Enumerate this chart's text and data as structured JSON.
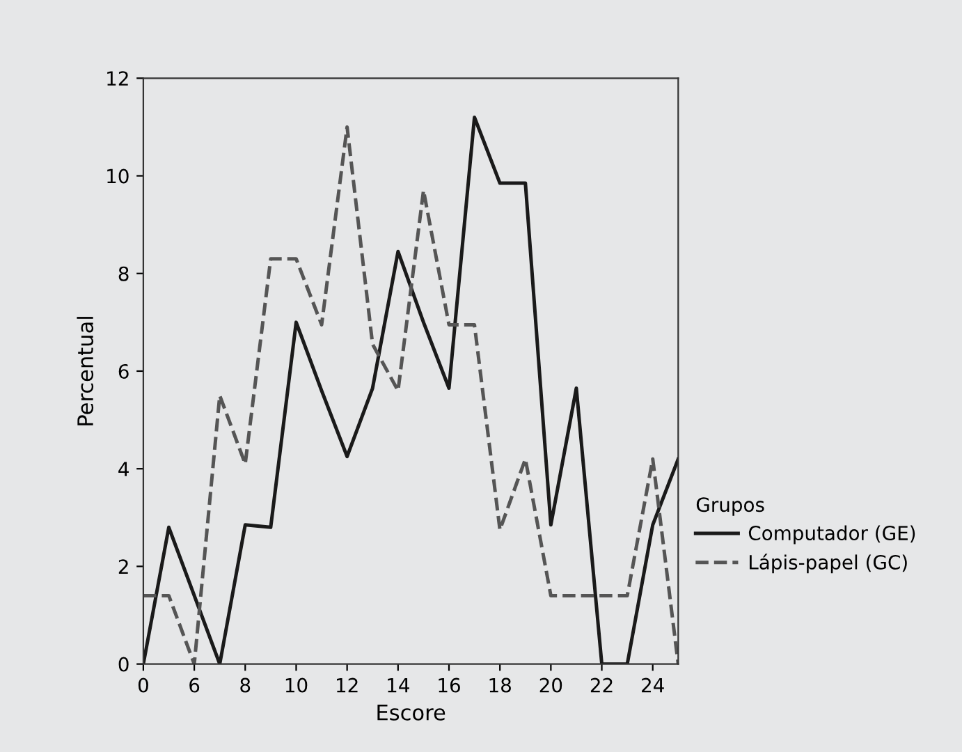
{
  "chart_data": {
    "type": "line",
    "xlabel": "Escore",
    "ylabel": "Percentual",
    "legend_title": "Grupos",
    "categories": [
      "0",
      null,
      "6",
      null,
      "8",
      null,
      "10",
      null,
      "12",
      null,
      "14",
      null,
      "16",
      null,
      "18",
      null,
      "20",
      null,
      "22",
      null,
      "24",
      null
    ],
    "series": [
      {
        "name": "Computador (GE)",
        "color": "#1a1a1a",
        "line_style": "solid",
        "values": [
          0,
          2.8,
          1.4,
          0,
          2.85,
          2.8,
          7.0,
          5.6,
          4.25,
          5.65,
          8.45,
          7.0,
          5.65,
          11.2,
          9.85,
          9.85,
          2.85,
          5.65,
          0,
          0,
          2.85,
          4.2
        ]
      },
      {
        "name": "Lápis-papel (GC)",
        "color": "#555555",
        "line_style": "dashed",
        "values": [
          1.4,
          1.4,
          0,
          5.5,
          4.1,
          8.3,
          8.3,
          6.95,
          11.0,
          6.55,
          5.6,
          9.7,
          6.95,
          6.95,
          2.75,
          4.2,
          1.4,
          1.4,
          1.4,
          1.4,
          4.2,
          0
        ]
      }
    ],
    "ylim": [
      0,
      12
    ],
    "yticks": [
      0,
      2,
      4,
      6,
      8,
      10,
      12
    ],
    "grid": false,
    "legend": "right",
    "marker": "none"
  }
}
